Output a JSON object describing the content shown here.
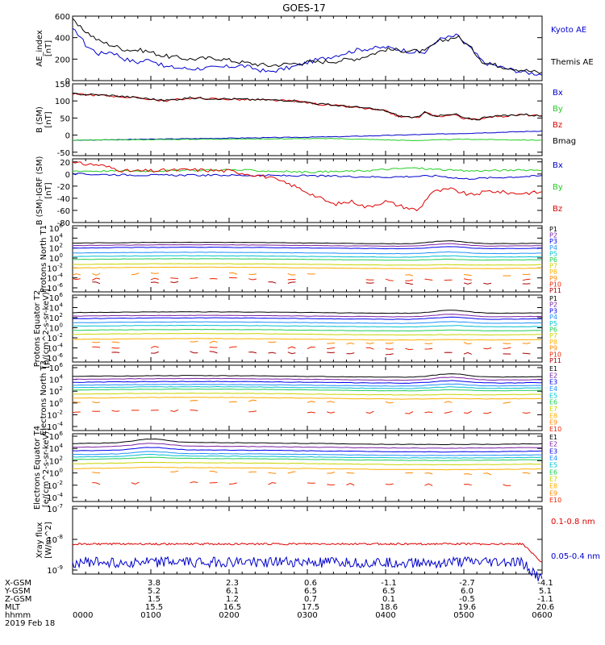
{
  "title": "GOES-17",
  "colors": {
    "black": "#000000",
    "blue": "#0000cc",
    "green": "#22cc22",
    "red": "#dd0000",
    "P1": "#000000",
    "P2": "#7a1fa2",
    "P3": "#0000ee",
    "P4": "#1e90ff",
    "P5": "#00c0d0",
    "P6": "#22cc55",
    "P7": "#c8d400",
    "P8": "#ffb000",
    "P9": "#ff8800",
    "P10": "#ee2200",
    "P11": "#aa0000"
  },
  "chart_data": [
    {
      "type": "line",
      "ylabel": "AE_index [nT]",
      "ylim": [
        0,
        600
      ],
      "yticks": [
        "600",
        "400",
        "200",
        "0"
      ],
      "xlim_minutes": [
        0,
        360
      ],
      "series": [
        {
          "name": "Kyoto AE",
          "color": "blue",
          "x": [
            0,
            5,
            10,
            20,
            30,
            40,
            50,
            60,
            70,
            90,
            110,
            130,
            150,
            170,
            180,
            200,
            220,
            240,
            260,
            270,
            280,
            295,
            305,
            315,
            330,
            345,
            360
          ],
          "y": [
            470,
            430,
            330,
            250,
            270,
            200,
            170,
            200,
            130,
            110,
            120,
            140,
            80,
            130,
            170,
            230,
            290,
            310,
            270,
            260,
            380,
            420,
            300,
            170,
            120,
            80,
            60
          ]
        },
        {
          "name": "Themis AE",
          "color": "black",
          "x": [
            0,
            5,
            10,
            20,
            30,
            40,
            55,
            70,
            90,
            110,
            130,
            150,
            170,
            180,
            200,
            220,
            240,
            255,
            270,
            280,
            295,
            305,
            315,
            330,
            345,
            360
          ],
          "y": [
            560,
            500,
            460,
            370,
            330,
            290,
            280,
            230,
            200,
            210,
            170,
            140,
            160,
            170,
            180,
            210,
            290,
            280,
            270,
            360,
            410,
            310,
            170,
            130,
            100,
            70
          ]
        }
      ]
    },
    {
      "type": "line",
      "ylabel": "B (SM) [nT]",
      "ylim": [
        -60,
        150
      ],
      "yticks": [
        "150",
        "100",
        "50",
        "0",
        "-50"
      ],
      "series": [
        {
          "name": "Bx",
          "color": "blue",
          "x": [
            0,
            100,
            200,
            300,
            360
          ],
          "y": [
            -15,
            -10,
            -5,
            5,
            12
          ]
        },
        {
          "name": "By",
          "color": "green",
          "x": [
            0,
            100,
            200,
            260,
            300,
            360
          ],
          "y": [
            -15,
            -12,
            -10,
            -16,
            -12,
            -15
          ]
        },
        {
          "name": "Bz",
          "color": "red",
          "x": [
            0,
            30,
            60,
            70,
            90,
            140,
            170,
            190,
            220,
            240,
            250,
            265,
            270,
            280,
            295,
            300,
            310,
            320,
            330,
            345,
            360
          ],
          "y": [
            120,
            115,
            105,
            100,
            108,
            103,
            100,
            90,
            80,
            70,
            55,
            50,
            65,
            55,
            60,
            48,
            45,
            55,
            55,
            60,
            55
          ]
        },
        {
          "name": "Bmag",
          "color": "black",
          "x": [
            0,
            30,
            60,
            70,
            90,
            140,
            170,
            190,
            220,
            240,
            250,
            265,
            270,
            280,
            295,
            300,
            310,
            320,
            330,
            345,
            360
          ],
          "y": [
            121,
            116,
            106,
            101,
            109,
            104,
            101,
            91,
            81,
            71,
            56,
            51,
            66,
            56,
            61,
            49,
            46,
            56,
            56,
            61,
            56
          ]
        }
      ]
    },
    {
      "type": "line",
      "ylabel": "B (SM)-IGRF (SM) [nT]",
      "ylim": [
        -80,
        25
      ],
      "yticks": [
        "20",
        "0",
        "-20",
        "-40",
        "-60",
        "-80"
      ],
      "series": [
        {
          "name": "Bx",
          "color": "blue",
          "x": [
            0,
            60,
            120,
            180,
            240,
            280,
            300,
            360
          ],
          "y": [
            0,
            -2,
            -2,
            -3,
            -5,
            -3,
            -8,
            -3
          ]
        },
        {
          "name": "By",
          "color": "green",
          "x": [
            0,
            60,
            120,
            180,
            220,
            260,
            300,
            360
          ],
          "y": [
            5,
            5,
            7,
            3,
            5,
            10,
            5,
            7
          ]
        },
        {
          "name": "Bz",
          "color": "red",
          "x": [
            0,
            20,
            40,
            60,
            90,
            120,
            150,
            170,
            190,
            200,
            215,
            225,
            240,
            255,
            265,
            275,
            290,
            305,
            320,
            340,
            360
          ],
          "y": [
            18,
            15,
            5,
            5,
            7,
            5,
            -5,
            -20,
            -40,
            -50,
            -45,
            -55,
            -45,
            -55,
            -60,
            -30,
            -25,
            -35,
            -28,
            -32,
            -30
          ]
        }
      ]
    },
    {
      "type": "line",
      "ylabel": "Protons North T1",
      "yscale": "log",
      "yticks": [
        "10^6",
        "10^4",
        "10^2",
        "10^0",
        "10^-2",
        "10^-4",
        "10^-6"
      ],
      "legend": [
        "P1",
        "P2",
        "P3",
        "P4",
        "P5",
        "P6",
        "P7",
        "P8",
        "P9",
        "P10",
        "P11"
      ],
      "series_levels_log10": [
        3.0,
        2.5,
        2.0,
        1.0,
        0.3,
        -0.3,
        -1.3,
        -2.0,
        -3.3,
        -4.3,
        -5.0
      ],
      "bump_center_minutes": 288
    },
    {
      "type": "line",
      "ylabel": "Protons Equator T2 [p/(cm^2-s-sr-keV)]",
      "yscale": "log",
      "yticks": [
        "10^6",
        "10^4",
        "10^2",
        "10^0",
        "10^-2",
        "10^-4",
        "10^-6"
      ],
      "legend": [
        "P1",
        "P2",
        "P3",
        "P4",
        "P5",
        "P6",
        "P7",
        "P8",
        "P9",
        "P10",
        "P11"
      ],
      "series_levels_log10": [
        3.0,
        2.3,
        1.8,
        1.0,
        0.3,
        -0.5,
        -1.3,
        -2.3,
        -3.0,
        -4.0,
        -5.0
      ],
      "bump_center_minutes": 290
    },
    {
      "type": "line",
      "ylabel": "Electrons North T3",
      "yscale": "log",
      "yticks": [
        "10^6",
        "10^4",
        "10^2",
        "10^0",
        "10^-2",
        "10^-4"
      ],
      "legend": [
        "E1",
        "E2",
        "E3",
        "E4",
        "E5",
        "E6",
        "E7",
        "E8",
        "E9",
        "E10"
      ],
      "series_levels_log10": [
        4.5,
        4.0,
        3.5,
        3.0,
        2.6,
        2.2,
        1.5,
        0.8,
        0.2,
        -1.5
      ],
      "bump_center_minutes": 290
    },
    {
      "type": "line",
      "ylabel": "Electrons Equator T4 [e/(cm^2-s-sr-keV)]",
      "yscale": "log",
      "yticks": [
        "10^6",
        "10^4",
        "10^2",
        "10^0",
        "10^-2",
        "10^-4"
      ],
      "legend": [
        "E1",
        "E2",
        "E3",
        "E4",
        "E5",
        "E6",
        "E7",
        "E8",
        "E9",
        "E10"
      ],
      "series_levels_log10": [
        4.8,
        4.2,
        3.6,
        3.0,
        2.6,
        2.2,
        1.5,
        0.7,
        0.0,
        -1.8
      ],
      "bump_center_minutes": 60
    },
    {
      "type": "line",
      "ylabel": "Xray flux [W/m^2]",
      "yscale": "log",
      "yticks": [
        "10^-7",
        "10^-8",
        "10^-9"
      ],
      "series": [
        {
          "name": "0.1-0.8 nm",
          "color": "red",
          "level_log10": -8.15
        },
        {
          "name": "0.05-0.4 nm",
          "color": "blue",
          "level_log10": -8.75
        }
      ]
    }
  ],
  "legends": {
    "ae": [
      "Kyoto AE",
      "Themis AE"
    ],
    "b": [
      "Bx",
      "By",
      "Bz",
      "Bmag"
    ],
    "db": [
      "Bx",
      "By",
      "Bz"
    ],
    "xray": [
      "0.1-0.8 nm",
      "0.05-0.4 nm"
    ]
  },
  "x_axis": {
    "ticks": [
      "0000",
      "0100",
      "0200",
      "0300",
      "0400",
      "0500",
      "0600"
    ],
    "row_labels": [
      "X-GSM",
      "Y-GSM",
      "Z-GSM",
      "MLT",
      "hhmm",
      "2019 Feb 18"
    ],
    "values": {
      "X-GSM": [
        "",
        "3.8",
        "2.3",
        "0.6",
        "-1.1",
        "-2.7",
        "-4.1"
      ],
      "Y-GSM": [
        "",
        "5.2",
        "6.1",
        "6.5",
        "6.5",
        "6.0",
        "5.1"
      ],
      "Z-GSM": [
        "",
        "1.5",
        "1.2",
        "0.7",
        "0.1",
        "-0.5",
        "-1.1"
      ],
      "MLT": [
        "",
        "15.5",
        "16.5",
        "17.5",
        "18.6",
        "19.6",
        "20.6"
      ]
    }
  }
}
